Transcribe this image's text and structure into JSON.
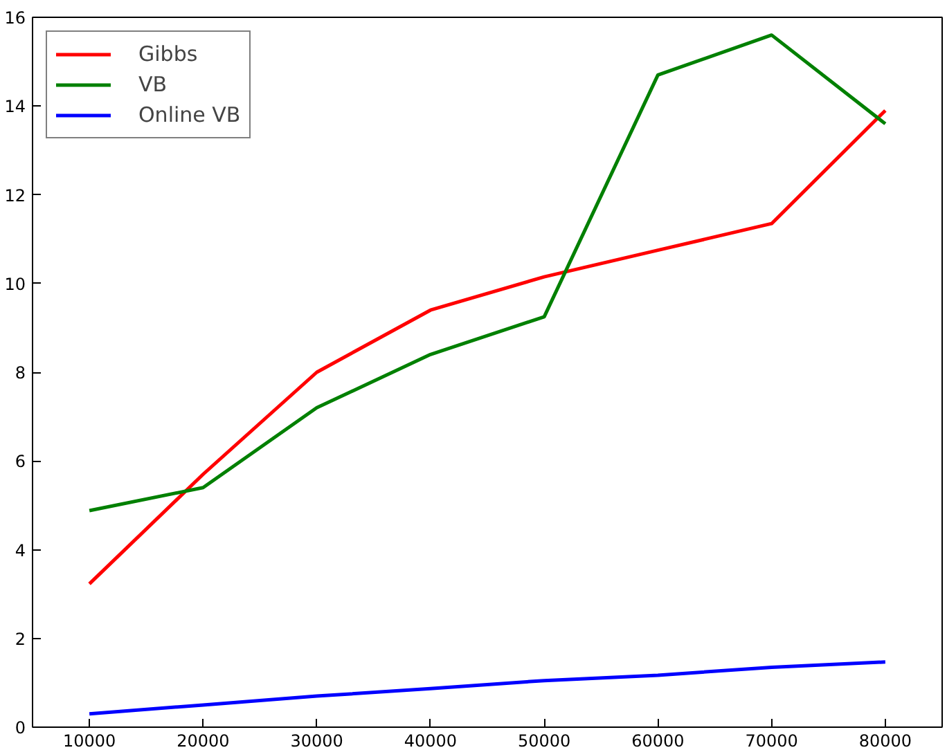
{
  "chart_data": {
    "type": "line",
    "x": [
      10000,
      20000,
      30000,
      40000,
      50000,
      60000,
      70000,
      80000
    ],
    "series": [
      {
        "name": "Gibbs",
        "color": "#ff0000",
        "values": [
          3.23,
          5.7,
          8.0,
          9.4,
          10.15,
          10.75,
          11.35,
          13.9
        ]
      },
      {
        "name": "VB",
        "color": "#008000",
        "values": [
          4.88,
          5.4,
          7.2,
          8.4,
          9.25,
          14.7,
          15.6,
          13.6
        ]
      },
      {
        "name": "Online VB",
        "color": "#0000ff",
        "values": [
          0.3,
          0.5,
          0.7,
          0.87,
          1.05,
          1.17,
          1.35,
          1.47
        ]
      }
    ],
    "xlim": [
      5000,
      85000
    ],
    "xticks": [
      10000,
      20000,
      30000,
      40000,
      50000,
      60000,
      70000,
      80000
    ],
    "ylim": [
      0,
      16
    ],
    "yticks": [
      0,
      2,
      4,
      6,
      8,
      10,
      12,
      14,
      16
    ],
    "grid": false,
    "legend": "top left",
    "line_style": "solid",
    "marker": "none"
  }
}
